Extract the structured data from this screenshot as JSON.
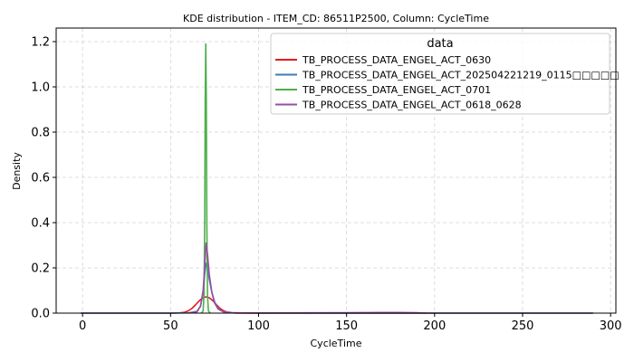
{
  "chart_data": {
    "type": "line",
    "title": "KDE distribution - ITEM_CD: 86511P2500, Column: CycleTime",
    "xlabel": "CycleTime",
    "ylabel": "Density",
    "xlim": [
      -15,
      303
    ],
    "ylim": [
      0,
      1.26
    ],
    "xticks": [
      0,
      50,
      100,
      150,
      200,
      250,
      300
    ],
    "yticks": [
      0.0,
      0.2,
      0.4,
      0.6,
      0.8,
      1.0,
      1.2
    ],
    "grid": true,
    "legend": {
      "title": "data",
      "placement": "top-right"
    },
    "series": [
      {
        "name": "TB_PROCESS_DATA_ENGEL_ACT_0630",
        "color": "#e41a1c",
        "x": [
          -1,
          50,
          55,
          58,
          60,
          62,
          64,
          66,
          68,
          70,
          72,
          74,
          76,
          78,
          80,
          82,
          84,
          87,
          90,
          100,
          150,
          180,
          200,
          250,
          290
        ],
        "y": [
          0.0,
          0.0,
          0.001,
          0.004,
          0.01,
          0.02,
          0.035,
          0.052,
          0.066,
          0.072,
          0.068,
          0.055,
          0.038,
          0.022,
          0.011,
          0.005,
          0.002,
          0.0,
          0.0,
          0.0,
          0.0,
          0.0,
          0.0,
          0.0,
          0.0
        ]
      },
      {
        "name": "TB_PROCESS_DATA_ENGEL_ACT_202504221219_0115□□□□□",
        "color": "#377eb8",
        "x": [
          -1,
          50,
          60,
          65,
          67,
          68.5,
          69.5,
          70.2,
          71,
          72,
          73.5,
          75,
          77,
          80,
          85,
          90,
          100,
          150,
          200,
          250,
          290
        ],
        "y": [
          0.0,
          0.0,
          0.001,
          0.008,
          0.03,
          0.09,
          0.18,
          0.22,
          0.2,
          0.15,
          0.09,
          0.05,
          0.02,
          0.006,
          0.002,
          0.001,
          0.0,
          0.0,
          0.0,
          0.0,
          0.0
        ]
      },
      {
        "name": "TB_PROCESS_DATA_ENGEL_ACT_0701",
        "color": "#4daf4a",
        "x": [
          67.5,
          68.5,
          69.0,
          69.4,
          69.7,
          70.0,
          70.3,
          70.6,
          71.0,
          71.5,
          72.5
        ],
        "y": [
          0.0,
          0.01,
          0.08,
          0.4,
          0.95,
          1.19,
          0.95,
          0.4,
          0.08,
          0.01,
          0.0
        ]
      },
      {
        "name": "TB_PROCESS_DATA_ENGEL_ACT_0618_0628",
        "color": "#984ea3",
        "x": [
          60,
          65,
          67,
          68.5,
          69.5,
          70.2,
          71,
          72,
          73.5,
          75,
          77,
          80,
          85,
          90,
          100,
          120,
          150,
          170,
          180,
          190,
          195
        ],
        "y": [
          0.0,
          0.005,
          0.03,
          0.1,
          0.22,
          0.31,
          0.26,
          0.17,
          0.09,
          0.045,
          0.018,
          0.006,
          0.002,
          0.001,
          0.0008,
          0.0015,
          0.002,
          0.003,
          0.003,
          0.002,
          0.0
        ]
      }
    ]
  }
}
